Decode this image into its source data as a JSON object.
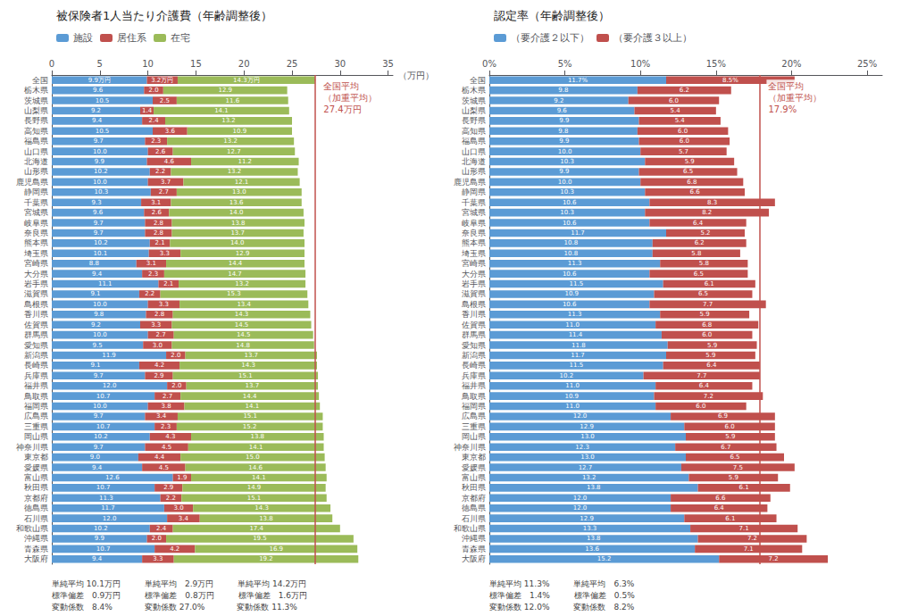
{
  "chart_data": [
    {
      "type": "bar",
      "orientation": "horizontal",
      "stacked": true,
      "data_labels": true,
      "grid": false,
      "legend": "top",
      "title": "被保険者1人当たり介護費（年齢調整後）",
      "x_label": "（万円）",
      "footnote": "単純平均 10.1万円　　　単純平均　2.9万円　　　単純平均 14.2万円\n標準偏差　0.9万円　　　標準偏差　0.8万円　　　標準偏差　1.6万円\n変動係数　8.4%　　　　変動係数 27.0%　　　　変動係数 11.3%",
      "reference_line": {
        "value": 27.4,
        "label": "全国平均\n（加重平均）\n27.4万円",
        "color": "#c0504d"
      },
      "categories": [
        "全国",
        "栃木県",
        "茨城県",
        "山梨県",
        "長野県",
        "高知県",
        "福島県",
        "山口県",
        "北海道",
        "山形県",
        "鹿児島県",
        "静岡県",
        "千葉県",
        "宮城県",
        "岐阜県",
        "奈良県",
        "熊本県",
        "埼玉県",
        "宮崎県",
        "大分県",
        "岩手県",
        "滋賀県",
        "島根県",
        "香川県",
        "佐賀県",
        "群馬県",
        "愛知県",
        "新潟県",
        "長崎県",
        "兵庫県",
        "福井県",
        "鳥取県",
        "福岡県",
        "広島県",
        "三重県",
        "岡山県",
        "神奈川県",
        "東京都",
        "愛媛県",
        "富山県",
        "秋田県",
        "京都府",
        "徳島県",
        "石川県",
        "和歌山県",
        "沖縄県",
        "青森県",
        "大阪府"
      ],
      "xlim": [
        0,
        35.5
      ],
      "xticks": [
        0,
        5,
        10,
        15,
        20,
        25,
        30,
        35
      ],
      "series": [
        {
          "name": "施設",
          "color": "#5b9bd5",
          "values": [
            9.9,
            9.6,
            10.5,
            9.2,
            9.4,
            10.5,
            9.7,
            10.0,
            9.9,
            10.2,
            10.0,
            10.3,
            9.3,
            9.6,
            9.7,
            9.7,
            10.2,
            10.1,
            8.8,
            9.4,
            11.1,
            9.1,
            10.0,
            9.8,
            9.2,
            10.0,
            9.5,
            11.9,
            9.1,
            9.7,
            12.0,
            10.7,
            10.0,
            9.7,
            10.7,
            10.2,
            9.7,
            9.0,
            9.4,
            12.6,
            10.7,
            11.3,
            11.7,
            12.0,
            10.2,
            9.9,
            10.7,
            9.4
          ],
          "value_labels": [
            "9.9万円",
            "9.6",
            "10.5",
            "9.2",
            "9.4",
            "10.5",
            "9.7",
            "10.0",
            "9.9",
            "10.2",
            "10.0",
            "10.3",
            "9.3",
            "9.6",
            "9.7",
            "9.7",
            "10.2",
            "10.1",
            "8.8",
            "9.4",
            "11.1",
            "9.1",
            "10.0",
            "9.8",
            "9.2",
            "10.0",
            "9.5",
            "11.9",
            "9.1",
            "9.7",
            "12.0",
            "10.7",
            "10.0",
            "9.7",
            "10.7",
            "10.2",
            "9.7",
            "9.0",
            "9.4",
            "12.6",
            "10.7",
            "11.3",
            "11.7",
            "12.0",
            "10.2",
            "9.9",
            "10.7",
            "9.4"
          ]
        },
        {
          "name": "居住系",
          "color": "#c0504d",
          "values": [
            3.2,
            2.0,
            2.5,
            1.4,
            2.4,
            3.6,
            2.3,
            2.6,
            4.6,
            2.2,
            3.7,
            2.7,
            3.1,
            2.6,
            2.8,
            2.8,
            2.1,
            3.3,
            3.1,
            2.3,
            2.1,
            2.2,
            3.3,
            2.8,
            3.3,
            2.7,
            3.0,
            2.0,
            4.2,
            2.9,
            2.0,
            2.7,
            3.8,
            3.4,
            2.3,
            4.3,
            4.5,
            4.4,
            4.5,
            1.9,
            2.9,
            2.2,
            3.0,
            3.4,
            2.4,
            2.0,
            4.2,
            3.3
          ],
          "value_labels": [
            "3.2万円",
            "2.0",
            "2.5",
            "1.4",
            "2.4",
            "3.6",
            "2.3",
            "2.6",
            "4.6",
            "2.2",
            "3.7",
            "2.7",
            "3.1",
            "2.6",
            "2.8",
            "2.8",
            "2.1",
            "3.3",
            "3.1",
            "2.3",
            "2.1",
            "2.2",
            "3.3",
            "2.8",
            "3.3",
            "2.7",
            "3.0",
            "2.0",
            "4.2",
            "2.9",
            "2.0",
            "2.7",
            "3.8",
            "3.4",
            "2.3",
            "4.3",
            "4.5",
            "4.4",
            "4.5",
            "1.9",
            "2.9",
            "2.2",
            "3.0",
            "3.4",
            "2.4",
            "2.0",
            "4.2",
            "3.3"
          ]
        },
        {
          "name": "在宅",
          "color": "#9bbb59",
          "values": [
            14.3,
            12.9,
            11.6,
            14.1,
            13.2,
            10.9,
            13.2,
            12.7,
            11.2,
            13.2,
            12.1,
            13.0,
            13.6,
            14.0,
            13.8,
            13.7,
            14.0,
            12.9,
            14.4,
            14.7,
            13.2,
            15.3,
            13.4,
            14.3,
            14.5,
            14.5,
            14.8,
            13.7,
            14.3,
            15.1,
            13.7,
            14.4,
            14.1,
            15.1,
            15.2,
            13.8,
            14.1,
            15.0,
            14.6,
            14.1,
            14.9,
            15.1,
            14.3,
            13.8,
            17.4,
            19.5,
            16.9,
            19.2
          ],
          "value_labels": [
            "14.3万円",
            "12.9",
            "11.6",
            "14.1",
            "13.2",
            "10.9",
            "13.2",
            "12.7",
            "11.2",
            "13.2",
            "12.1",
            "13.0",
            "13.6",
            "14.0",
            "13.8",
            "13.7",
            "14.0",
            "12.9",
            "14.4",
            "14.7",
            "13.2",
            "15.3",
            "13.4",
            "14.3",
            "14.5",
            "14.5",
            "14.8",
            "13.7",
            "14.3",
            "15.1",
            "13.7",
            "14.4",
            "14.1",
            "15.1",
            "15.2",
            "13.8",
            "14.1",
            "15.0",
            "14.6",
            "14.1",
            "14.9",
            "15.1",
            "14.3",
            "13.8",
            "17.4",
            "19.5",
            "16.9",
            "19.2"
          ]
        }
      ]
    },
    {
      "type": "bar",
      "orientation": "horizontal",
      "stacked": true,
      "data_labels": true,
      "grid": false,
      "legend": "top",
      "title": "認定率（年齢調整後）",
      "footnote": "単純平均 11.3%　　　単純平均　6.3%\n標準偏差　1.4%　　　標準偏差　0.5%\n変動係数 12.0%　　　変動係数　8.2%",
      "reference_line": {
        "value": 17.9,
        "label": "全国平均\n（加重平均）\n17.9%",
        "color": "#c0504d"
      },
      "categories": [
        "全国",
        "栃木県",
        "茨城県",
        "山梨県",
        "長野県",
        "高知県",
        "福島県",
        "山口県",
        "北海道",
        "山形県",
        "鹿児島県",
        "静岡県",
        "千葉県",
        "宮城県",
        "岐阜県",
        "奈良県",
        "熊本県",
        "埼玉県",
        "宮崎県",
        "大分県",
        "岩手県",
        "滋賀県",
        "島根県",
        "香川県",
        "佐賀県",
        "群馬県",
        "愛知県",
        "新潟県",
        "長崎県",
        "兵庫県",
        "福井県",
        "鳥取県",
        "福岡県",
        "広島県",
        "三重県",
        "岡山県",
        "神奈川県",
        "東京都",
        "愛媛県",
        "富山県",
        "秋田県",
        "京都府",
        "徳島県",
        "石川県",
        "和歌山県",
        "沖縄県",
        "青森県",
        "大阪府"
      ],
      "xlim": [
        0,
        26
      ],
      "xticks": [
        {
          "value": 0,
          "label": "0%"
        },
        {
          "value": 5,
          "label": "5%"
        },
        {
          "value": 10,
          "label": "10%"
        },
        {
          "value": 15,
          "label": "15%"
        },
        {
          "value": 20,
          "label": "20%"
        },
        {
          "value": 25,
          "label": "25%"
        }
      ],
      "series": [
        {
          "name": "（要介護２以下）",
          "color": "#5b9bd5",
          "values": [
            11.7,
            9.8,
            9.2,
            9.6,
            9.9,
            9.8,
            9.9,
            10.0,
            10.3,
            9.9,
            10.0,
            10.3,
            10.6,
            10.3,
            10.6,
            11.7,
            10.8,
            10.8,
            11.3,
            10.6,
            11.5,
            10.9,
            10.6,
            11.3,
            11.0,
            11.4,
            11.8,
            11.7,
            11.5,
            10.2,
            11.0,
            10.9,
            11.0,
            12.0,
            12.9,
            13.0,
            12.3,
            13.0,
            12.7,
            13.2,
            13.8,
            12.0,
            12.0,
            12.9,
            13.3,
            13.8,
            13.6,
            15.2
          ],
          "value_labels": [
            "11.7%",
            "9.8",
            "9.2",
            "9.6",
            "9.9",
            "9.8",
            "9.9",
            "10.0",
            "10.3",
            "9.9",
            "10.0",
            "10.3",
            "10.6",
            "10.3",
            "10.6",
            "11.7",
            "10.8",
            "10.8",
            "11.3",
            "10.6",
            "11.5",
            "10.9",
            "10.6",
            "11.3",
            "11.0",
            "11.4",
            "11.8",
            "11.7",
            "11.5",
            "10.2",
            "11.0",
            "10.9",
            "11.0",
            "12.0",
            "12.9",
            "13.0",
            "12.3",
            "13.0",
            "12.7",
            "13.2",
            "13.8",
            "12.0",
            "12.0",
            "12.9",
            "13.3",
            "13.8",
            "13.6",
            "15.2"
          ]
        },
        {
          "name": "（要介護３以上）",
          "color": "#c0504d",
          "values": [
            8.5,
            6.2,
            6.0,
            5.4,
            5.4,
            6.0,
            6.0,
            5.7,
            5.9,
            6.5,
            6.8,
            6.6,
            8.3,
            8.2,
            6.4,
            5.2,
            6.2,
            5.8,
            5.8,
            6.5,
            6.1,
            6.5,
            7.7,
            5.9,
            6.8,
            6.0,
            5.9,
            5.9,
            6.4,
            7.7,
            6.4,
            7.2,
            6.0,
            6.9,
            6.0,
            5.9,
            6.7,
            6.5,
            7.5,
            5.9,
            6.1,
            6.6,
            6.4,
            6.1,
            7.1,
            7.2,
            7.1,
            7.2
          ],
          "value_labels": [
            "8.5%",
            "6.2",
            "6.0",
            "5.4",
            "5.4",
            "6.0",
            "6.0",
            "5.7",
            "5.9",
            "6.5",
            "6.8",
            "6.6",
            "8.3",
            "8.2",
            "6.4",
            "5.2",
            "6.2",
            "5.8",
            "5.8",
            "6.5",
            "6.1",
            "6.5",
            "7.7",
            "5.9",
            "6.8",
            "6.0",
            "5.9",
            "5.9",
            "6.4",
            "7.7",
            "6.4",
            "7.2",
            "6.0",
            "6.9",
            "6.0",
            "5.9",
            "6.7",
            "6.5",
            "7.5",
            "5.9",
            "6.1",
            "6.6",
            "6.4",
            "6.1",
            "7.1",
            "7.2",
            "7.1",
            "7.2"
          ]
        }
      ]
    }
  ]
}
